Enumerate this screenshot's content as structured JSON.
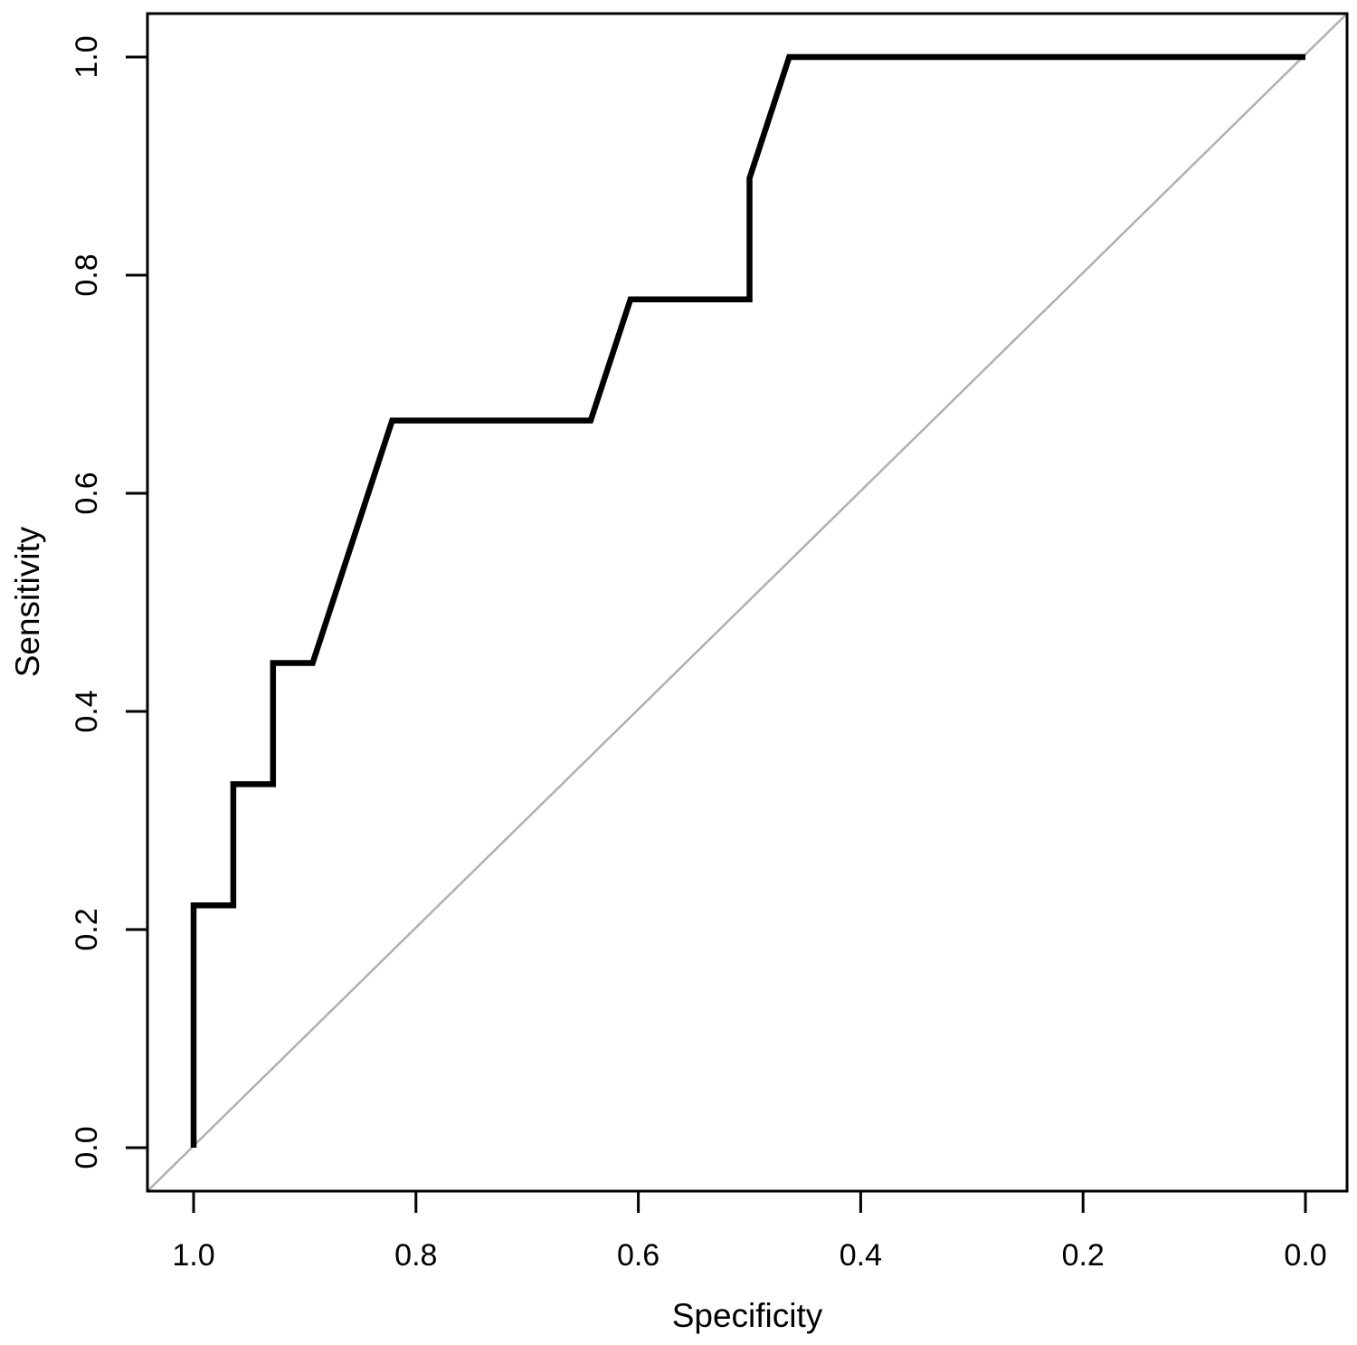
{
  "chart_data": {
    "type": "line",
    "title": "",
    "xlabel": "Specificity",
    "ylabel": "Sensitivity",
    "x_axis_reversed": true,
    "xlim": [
      1.0,
      0.0
    ],
    "ylim": [
      0.0,
      1.0
    ],
    "grid": false,
    "legend": "none",
    "x_ticks": [
      1.0,
      0.8,
      0.6,
      0.4,
      0.2,
      0.0
    ],
    "x_tick_labels": [
      "1.0",
      "0.8",
      "0.6",
      "0.4",
      "0.2",
      "0.0"
    ],
    "y_ticks": [
      0.0,
      0.2,
      0.4,
      0.6,
      0.8,
      1.0
    ],
    "y_tick_labels": [
      "0.0",
      "0.2",
      "0.4",
      "0.6",
      "0.8",
      "1.0"
    ],
    "series": [
      {
        "name": "ROC curve",
        "color": "#000000",
        "stroke_width": 6.5,
        "points": [
          {
            "specificity": 1.0,
            "sensitivity": 0.0
          },
          {
            "specificity": 1.0,
            "sensitivity": 0.2222
          },
          {
            "specificity": 0.9643,
            "sensitivity": 0.2222
          },
          {
            "specificity": 0.9643,
            "sensitivity": 0.3333
          },
          {
            "specificity": 0.9286,
            "sensitivity": 0.3333
          },
          {
            "specificity": 0.9286,
            "sensitivity": 0.4444
          },
          {
            "specificity": 0.8929,
            "sensitivity": 0.4444
          },
          {
            "specificity": 0.8214,
            "sensitivity": 0.6667
          },
          {
            "specificity": 0.6429,
            "sensitivity": 0.6667
          },
          {
            "specificity": 0.6071,
            "sensitivity": 0.7778
          },
          {
            "specificity": 0.5,
            "sensitivity": 0.7778
          },
          {
            "specificity": 0.5,
            "sensitivity": 0.8889
          },
          {
            "specificity": 0.4643,
            "sensitivity": 1.0
          },
          {
            "specificity": 0.0,
            "sensitivity": 1.0
          }
        ]
      }
    ],
    "reference_line": {
      "name": "chance diagonal",
      "description": "identity line from bottom-left to top-right of plot box",
      "color": "#b0b0b0",
      "stroke_width": 2.5
    },
    "frame_color": "#000000"
  }
}
